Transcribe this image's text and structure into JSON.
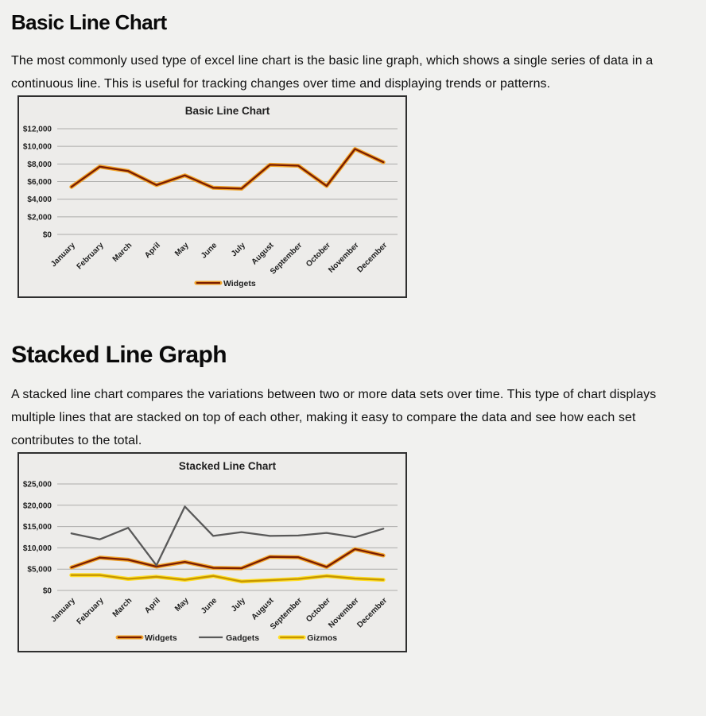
{
  "page": {
    "background": "#f1f1ef",
    "sections": [
      {
        "heading": "Basic Line Chart",
        "paragraph": "The most commonly used type of excel line chart is the basic line graph, which shows a single series of data in a continuous line. This is useful for tracking changes over time and displaying trends or patterns."
      },
      {
        "heading": "Stacked Line Graph",
        "paragraph": "A stacked line chart compares the variations between two or more data sets over time. This type of chart displays multiple lines that are stacked on top of each other, making it easy to compare the data and see how each set contributes to the total."
      }
    ]
  },
  "chart_data": [
    {
      "type": "line",
      "title": "Basic Line Chart",
      "categories": [
        "January",
        "February",
        "March",
        "April",
        "May",
        "June",
        "July",
        "August",
        "September",
        "October",
        "November",
        "December"
      ],
      "series": [
        {
          "name": "Widgets",
          "values": [
            5400,
            7700,
            7200,
            5600,
            6700,
            5300,
            5200,
            7900,
            7800,
            5500,
            9700,
            8200
          ],
          "core_color": "#7a1c00",
          "glow_color": "#f2a52b"
        }
      ],
      "ylim": [
        0,
        12000
      ],
      "ytick_step": 2000,
      "ytick_labels": [
        "$0",
        "$2,000",
        "$4,000",
        "$6,000",
        "$8,000",
        "$10,000",
        "$12,000"
      ],
      "grid": true,
      "legend_position": "bottom",
      "gridline_color": "#adadab",
      "text_color": "#1f1f1f"
    },
    {
      "type": "line",
      "title": "Stacked Line Chart",
      "categories": [
        "January",
        "February",
        "March",
        "April",
        "May",
        "June",
        "July",
        "August",
        "September",
        "October",
        "November",
        "December"
      ],
      "series": [
        {
          "name": "Widgets",
          "values": [
            5400,
            7700,
            7200,
            5600,
            6700,
            5300,
            5200,
            7900,
            7800,
            5500,
            9700,
            8200
          ],
          "core_color": "#7a1c00",
          "glow_color": "#f2a52b"
        },
        {
          "name": "Gadgets",
          "values": [
            13400,
            12000,
            14700,
            5900,
            19700,
            12800,
            13700,
            12800,
            12900,
            13500,
            12500,
            14500
          ],
          "core_color": "#595959"
        },
        {
          "name": "Gizmos",
          "values": [
            3600,
            3600,
            2700,
            3200,
            2500,
            3400,
            2100,
            2400,
            2700,
            3400,
            2800,
            2500
          ],
          "core_color": "#c69500",
          "glow_color": "#ffde26"
        }
      ],
      "ylim": [
        0,
        25000
      ],
      "ytick_step": 5000,
      "ytick_labels": [
        "$0",
        "$5,000",
        "$10,000",
        "$15,000",
        "$20,000",
        "$25,000"
      ],
      "grid": true,
      "legend_position": "bottom",
      "gridline_color": "#adadab",
      "text_color": "#1f1f1f"
    }
  ]
}
